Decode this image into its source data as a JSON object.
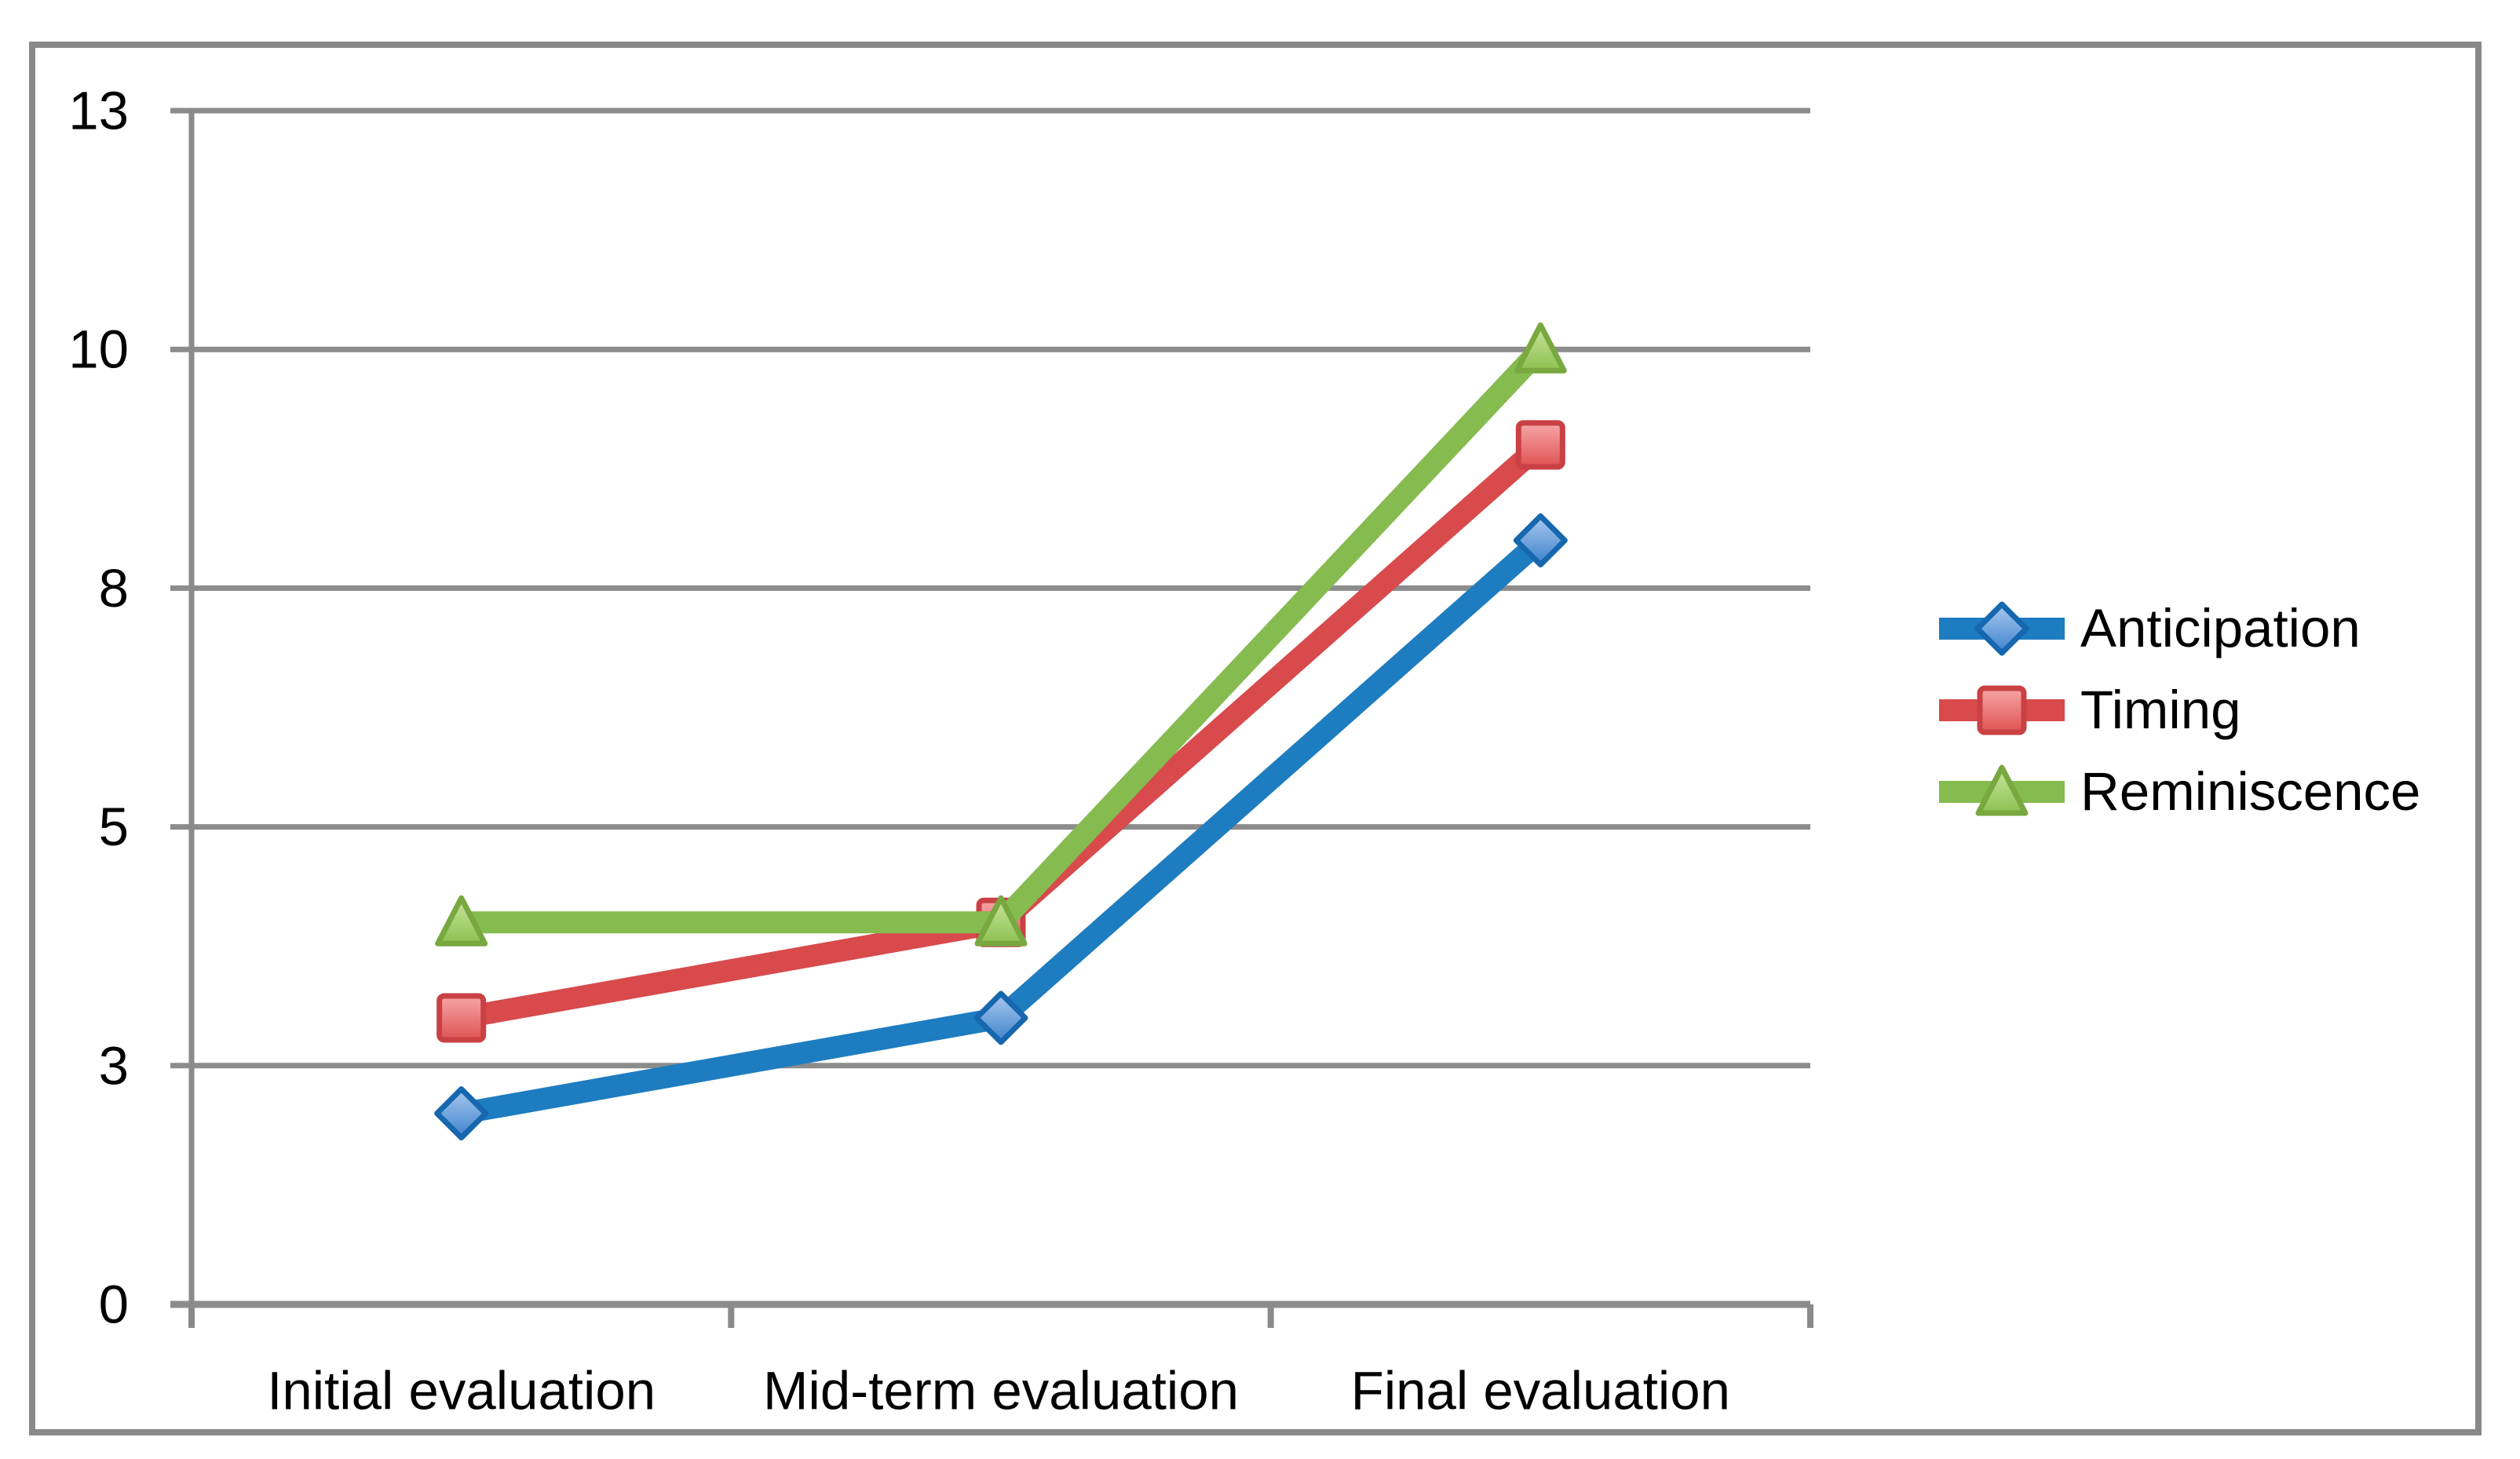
{
  "chart_data": {
    "type": "line",
    "title": "",
    "xlabel": "",
    "ylabel": "",
    "categories": [
      "Initial evaluation",
      "Mid-term evaluation",
      "Final evaluation"
    ],
    "series": [
      {
        "name": "Anticipation",
        "marker": "diamond",
        "values": [
          2,
          3,
          8
        ],
        "color": "#1E7CC0",
        "marker_fill_top": "#A9C9EF",
        "marker_fill_bottom": "#3E82CC",
        "marker_border": "#1667AE"
      },
      {
        "name": "Timing",
        "marker": "square",
        "values": [
          3,
          4,
          9
        ],
        "color": "#D84A4C",
        "marker_fill_top": "#F7A6A6",
        "marker_fill_bottom": "#E05254",
        "marker_border": "#C94144"
      },
      {
        "name": "Reminiscence",
        "marker": "triangle",
        "values": [
          4,
          4,
          10
        ],
        "color": "#85BB4F",
        "marker_fill_top": "#CBE79E",
        "marker_fill_bottom": "#8CC050",
        "marker_border": "#78A83F"
      }
    ],
    "y_axis": {
      "tick_labels": [
        "0",
        "3",
        "5",
        "8",
        "10",
        "13"
      ],
      "tick_values": [
        0,
        2.5,
        5,
        7.5,
        10,
        12.5
      ],
      "ylim": [
        0,
        12.5
      ]
    },
    "grid": "horizontal",
    "legend_position": "right",
    "colors": {
      "gridline": "#8C8C8C",
      "axis": "#8A8A8A",
      "frame_border": "#898989",
      "text": "#000000",
      "background": "#FFFFFF"
    }
  }
}
